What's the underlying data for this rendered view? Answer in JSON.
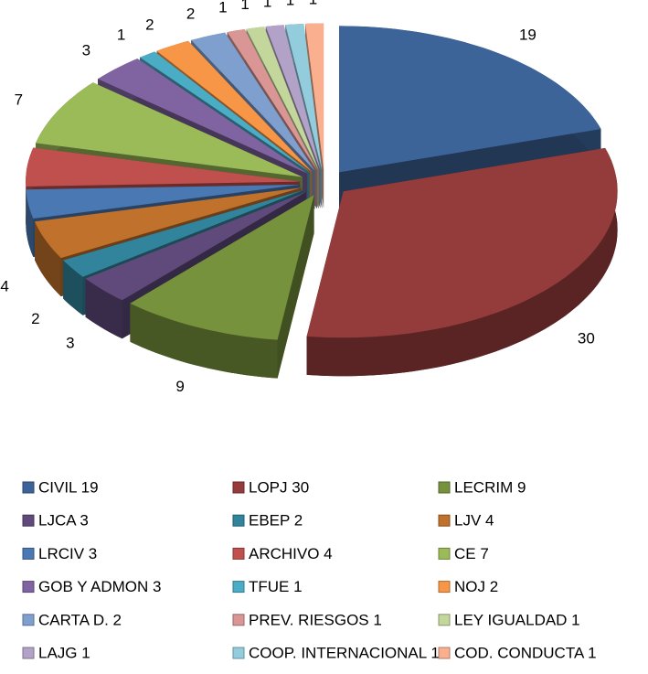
{
  "chart_data": {
    "type": "pie3d",
    "categories": [
      "CIVIL 19",
      "LOPJ 30",
      "LECRIM 9",
      "LJCA 3",
      "EBEP 2",
      "LJV 4",
      "LRCIV 3",
      "ARCHIVO 4",
      "CE 7",
      "GOB Y ADMON 3",
      "TFUE 1",
      "NOJ 2",
      "CARTA D. 2",
      "PREV. RIESGOS 1",
      "LEY IGUALDAD 1",
      "LAJG 1",
      "COOP. INTERNACIONAL 1",
      "COD. CONDUCTA 1"
    ],
    "values": [
      19,
      30,
      9,
      3,
      2,
      4,
      3,
      4,
      7,
      3,
      1,
      2,
      2,
      1,
      1,
      1,
      1,
      1
    ],
    "colors": [
      "#3c6499",
      "#943c3b",
      "#76923c",
      "#5f4a7b",
      "#31849b",
      "#c0712b",
      "#4a78b3",
      "#c0504d",
      "#9bbb59",
      "#8064a2",
      "#4bacc6",
      "#f79646",
      "#7f9fcf",
      "#d99694",
      "#c3d69b",
      "#b3a2c7",
      "#93cddd",
      "#fab08f"
    ],
    "legend": "bottom"
  }
}
